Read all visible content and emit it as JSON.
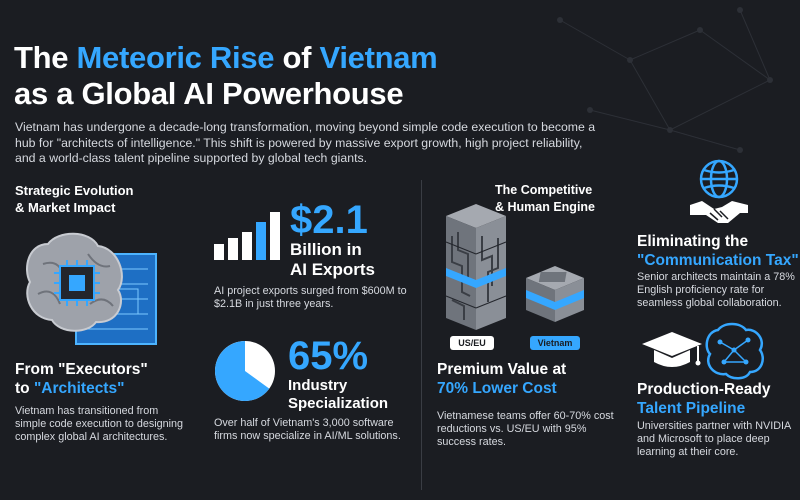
{
  "title": {
    "line1_part1": "The ",
    "line1_hl1": "Meteoric Rise",
    "line1_part2": " of ",
    "line1_hl2": "Vietnam",
    "line2": "as a Global AI Powerhouse"
  },
  "intro": "Vietnam has undergone a decade-long transformation, moving beyond simple code execution to become a hub for \"architects of intelligence.\" This shift is powered by massive export growth, high project reliability, and a world-class talent pipeline supported by global tech giants.",
  "left_section": {
    "heading_line1": "Strategic Evolution",
    "heading_line2": "& Market Impact"
  },
  "exports": {
    "value": "$2.1",
    "label_line1": "Billion in",
    "label_line2": "AI Exports",
    "desc": "AI project exports surged from $600M to $2.1B in just three years."
  },
  "architects": {
    "heading_line1_part1": "From ",
    "heading_line1_hl": "\"Executors\"",
    "heading_line2_part1": "to ",
    "heading_line2_hl": "\"Architects\"",
    "desc": "Vietnam has transitioned from simple code execution to designing complex global AI architectures."
  },
  "specialization": {
    "value": "65%",
    "pie_fraction": 0.65,
    "label_line1": "Industry",
    "label_line2": "Specialization",
    "desc": "Over half of Vietnam's 3,000 software firms now specialize in AI/ML solutions."
  },
  "right_section": {
    "heading_line1": "The Competitive",
    "heading_line2": "& Human Engine"
  },
  "cost": {
    "tag_us": "US/EU",
    "tag_vn": "Vietnam",
    "heading_line1": "Premium Value at",
    "heading_line2": "70% Lower Cost",
    "desc": "Vietnamese teams offer 60-70% cost reductions vs. US/EU with 95% success rates."
  },
  "communication": {
    "heading_line1": "Eliminating the",
    "heading_line2": "\"Communication Tax\"",
    "desc": "Senior architects maintain a 78% English proficiency rate for seamless global collaboration."
  },
  "talent": {
    "heading_line1": "Production-Ready",
    "heading_line2": "Talent Pipeline",
    "desc": "Universities partner with NVIDIA and Microsoft to place deep learning at their core."
  },
  "colors": {
    "background": "#1b1d22",
    "accent": "#35a7ff",
    "text": "#ffffff",
    "muted": "#d6d9df"
  },
  "icons": [
    "globe-icon",
    "handshake-icon",
    "brain-chip-icon",
    "bar-chart-icon",
    "pie-chart-icon",
    "graduation-cap-icon",
    "neural-brain-icon",
    "tower-icon",
    "block-icon"
  ]
}
